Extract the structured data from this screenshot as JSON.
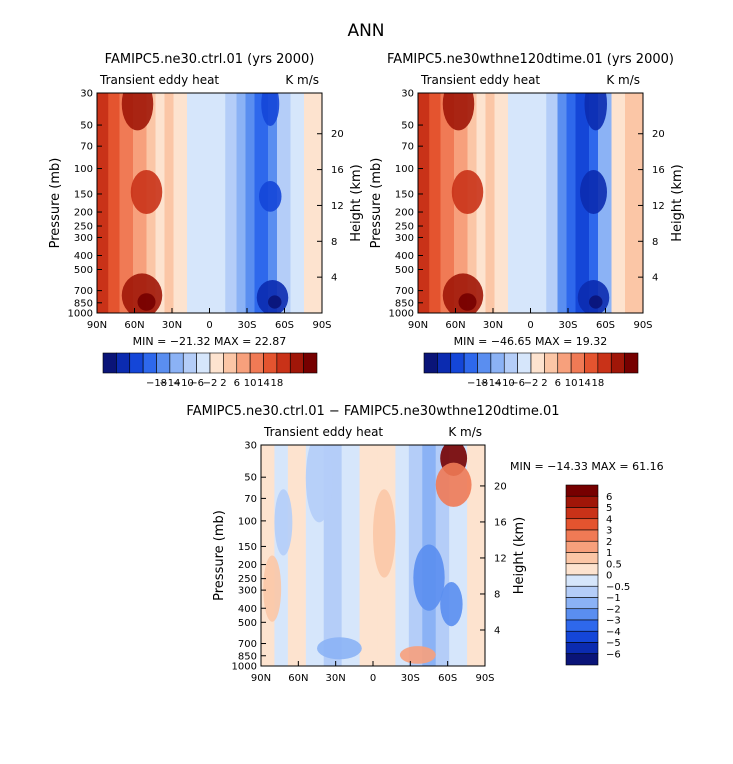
{
  "page_title": "ANN",
  "chart_data": [
    {
      "type": "heatmap",
      "id": "panel-ctrl",
      "title": "FAMIPC5.ne30.ctrl.01 (yrs 2000)",
      "subtitle_left": "Transient eddy heat",
      "subtitle_right": "K m/s",
      "ylabel": "Pressure (mb)",
      "ylabel_right": "Height (km)",
      "pressure_ticks": [
        "30",
        "50",
        "70",
        "100",
        "150",
        "200",
        "250",
        "300",
        "400",
        "500",
        "700",
        "850",
        "1000"
      ],
      "height_ticks": [
        "20",
        "16",
        "12",
        "8",
        "4"
      ],
      "lat_ticks": [
        "90N",
        "60N",
        "30N",
        "0",
        "30S",
        "60S",
        "90S"
      ],
      "min_max_text": "MIN = −21.32   MAX =  22.87",
      "min": -21.32,
      "max": 22.87,
      "colorbar_labels": [
        "−18",
        "−14",
        "−10",
        "−6",
        "−2",
        "2",
        "6",
        "10",
        "14",
        "18"
      ],
      "levels": [
        -18,
        -14,
        -10,
        -6,
        -2,
        2,
        6,
        10,
        14,
        18
      ]
    },
    {
      "type": "heatmap",
      "id": "panel-test",
      "title": "FAMIPC5.ne30wthne120dtime.01 (yrs 2000)",
      "subtitle_left": "Transient eddy heat",
      "subtitle_right": "K m/s",
      "ylabel": "Pressure (mb)",
      "ylabel_right": "Height (km)",
      "pressure_ticks": [
        "30",
        "50",
        "70",
        "100",
        "150",
        "200",
        "250",
        "300",
        "400",
        "500",
        "700",
        "850",
        "1000"
      ],
      "height_ticks": [
        "20",
        "16",
        "12",
        "8",
        "4"
      ],
      "lat_ticks": [
        "90N",
        "60N",
        "30N",
        "0",
        "30S",
        "60S",
        "90S"
      ],
      "min_max_text": "MIN = −46.65   MAX =  19.32",
      "min": -46.65,
      "max": 19.32,
      "colorbar_labels": [
        "−18",
        "−14",
        "−10",
        "−6",
        "−2",
        "2",
        "6",
        "10",
        "14",
        "18"
      ],
      "levels": [
        -18,
        -14,
        -10,
        -6,
        -2,
        2,
        6,
        10,
        14,
        18
      ]
    },
    {
      "type": "heatmap",
      "id": "panel-diff",
      "title": "FAMIPC5.ne30.ctrl.01 − FAMIPC5.ne30wthne120dtime.01",
      "subtitle_left": "Transient eddy heat",
      "subtitle_right": "K m/s",
      "ylabel": "Pressure (mb)",
      "ylabel_right": "Height (km)",
      "pressure_ticks": [
        "30",
        "50",
        "70",
        "100",
        "150",
        "200",
        "250",
        "300",
        "400",
        "500",
        "700",
        "850",
        "1000"
      ],
      "height_ticks": [
        "20",
        "16",
        "12",
        "8",
        "4"
      ],
      "lat_ticks": [
        "90N",
        "60N",
        "30N",
        "0",
        "30S",
        "60S",
        "90S"
      ],
      "min_max_text": "MIN = −14.33   MAX =  61.16",
      "min": -14.33,
      "max": 61.16,
      "colorbar_labels": [
        "6",
        "5",
        "4",
        "3",
        "2",
        "1",
        "0.5",
        "0",
        "−0.5",
        "−1",
        "−2",
        "−3",
        "−4",
        "−5",
        "−6"
      ],
      "levels": [
        -6,
        -5,
        -4,
        -3,
        -2,
        -1,
        -0.5,
        0,
        0.5,
        1,
        2,
        3,
        4,
        5,
        6
      ]
    }
  ],
  "colors": {
    "palette": [
      "#0a1478",
      "#0b2bb0",
      "#1446d8",
      "#2e68ec",
      "#5a8ef0",
      "#8bb2f5",
      "#b4cdf8",
      "#d6e6fb",
      "#fde3cf",
      "#fbc6a6",
      "#f7a07c",
      "#f07a55",
      "#e4542f",
      "#c93218",
      "#a01608",
      "#760000"
    ]
  }
}
